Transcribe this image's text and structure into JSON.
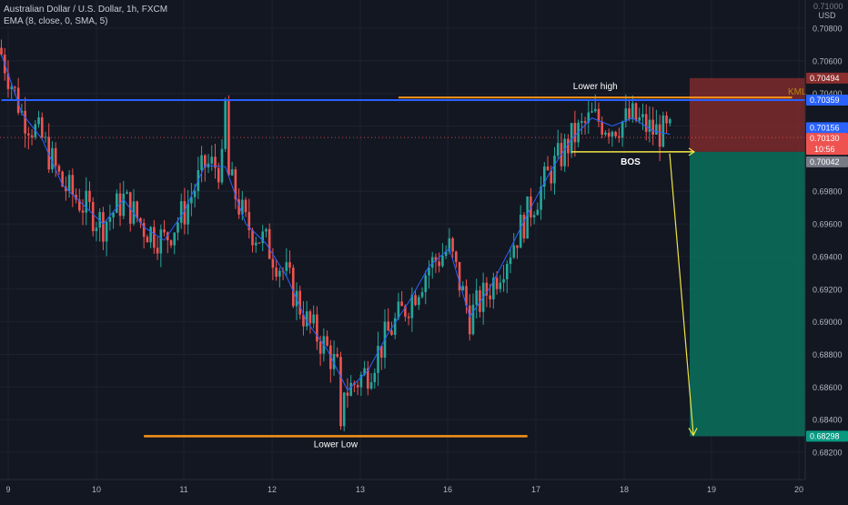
{
  "header": {
    "symbol_line": "Australian Dollar / U.S. Dollar, 1h, FXCM",
    "indicator_line": "EMA (8, close, 0, SMA, 5)",
    "axis_unit_top": "0.71000",
    "axis_unit": "USD"
  },
  "colors": {
    "background": "#131722",
    "up": "#26a69a",
    "down": "#ef5350",
    "ema": "#2962ff",
    "support_line": "#2962ff",
    "level_line": "#f7931a",
    "projection": "#f0e442",
    "stop_zone": "#8b2e2e",
    "target_zone": "#0b6b5a"
  },
  "annotations": {
    "lower_high": "Lower high",
    "bos": "BOS",
    "lower_low": "Lower Low",
    "kml": "KML"
  },
  "price_tags": {
    "stop": "0.70494",
    "blue_line": "0.70359",
    "last_blue": "0.70156",
    "current": "0.70130",
    "countdown": "10:56",
    "entry": "0.70042",
    "target": "0.68298"
  },
  "chart_data": {
    "type": "candlestick",
    "title": "Australian Dollar / U.S. Dollar, 1h, FXCM",
    "x_tick_labels": [
      "9",
      "10",
      "11",
      "12",
      "13",
      "16",
      "17",
      "18",
      "19",
      "20"
    ],
    "y_tick_labels": [
      "0.70800",
      "0.70600",
      "0.70400",
      "0.70200",
      "0.69800",
      "0.69600",
      "0.69400",
      "0.69200",
      "0.69000",
      "0.68800",
      "0.68600",
      "0.68400",
      "0.68200"
    ],
    "ylim": [
      0.6815,
      0.7113
    ],
    "grid": true,
    "series": [
      {
        "name": "EMA (8, close, 0, SMA, 5)",
        "type": "line",
        "x": [
          0,
          6,
          12,
          18,
          24,
          30,
          36,
          42,
          48,
          54,
          60,
          66,
          72,
          78,
          84,
          90,
          96,
          102,
          108,
          114,
          120,
          126,
          132,
          138,
          144,
          150,
          156,
          162,
          168,
          174,
          180,
          186,
          192,
          197
        ],
        "values": [
          0.7064,
          0.7028,
          0.7012,
          0.6984,
          0.6972,
          0.696,
          0.6975,
          0.6958,
          0.695,
          0.6968,
          0.6996,
          0.6995,
          0.696,
          0.6948,
          0.6928,
          0.69,
          0.6883,
          0.6858,
          0.687,
          0.6893,
          0.6912,
          0.6934,
          0.6945,
          0.6903,
          0.6921,
          0.6945,
          0.697,
          0.6993,
          0.7012,
          0.7025,
          0.702,
          0.7025,
          0.7017,
          0.7015
        ]
      }
    ],
    "levels": [
      {
        "label": "Lower high",
        "price": 0.70375,
        "x_range": [
          117,
          233
        ]
      },
      {
        "label": "",
        "price": 0.70359,
        "x_range": [
          0,
          241
        ]
      },
      {
        "label": "BOS",
        "price": 0.70042,
        "x_range": [
          168,
          204
        ]
      },
      {
        "label": "Lower Low",
        "price": 0.68298,
        "x_range": [
          42,
          155
        ]
      }
    ],
    "position": {
      "entry": 0.70042,
      "stop": 0.70494,
      "target": 0.68298
    }
  }
}
